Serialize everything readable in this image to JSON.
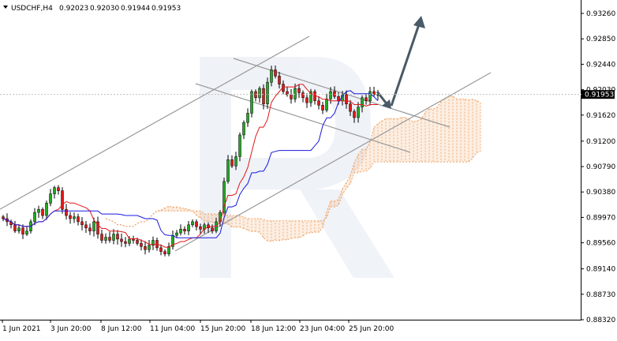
{
  "header": {
    "symbol": "USDCHF,H4",
    "open": "0.92023",
    "high": "0.92030",
    "low": "0.91944",
    "close": "0.91953"
  },
  "price_label": "0.91953",
  "colors": {
    "bull": "#22a822",
    "bear": "#e01818",
    "tenkan": "#e01818",
    "kijun": "#1818e0",
    "cloud": "#f0a060",
    "channel": "#999999",
    "arrow": "#4a5a66"
  },
  "chart_data": {
    "type": "candlestick",
    "yticks": [
      "0.93260",
      "0.92850",
      "0.92440",
      "0.92030",
      "0.91620",
      "0.91200",
      "0.90790",
      "0.90380",
      "0.89970",
      "0.89560",
      "0.89140",
      "0.88730",
      "0.88320"
    ],
    "xticks": [
      "1 Jun 2021",
      "3 Jun 20:00",
      "8 Jun 12:00",
      "11 Jun 04:00",
      "15 Jun 20:00",
      "18 Jun 12:00",
      "23 Jun 04:00",
      "25 Jun 20:00"
    ],
    "ylim": [
      0.8832,
      0.9346
    ],
    "last_price": 0.91953
  }
}
